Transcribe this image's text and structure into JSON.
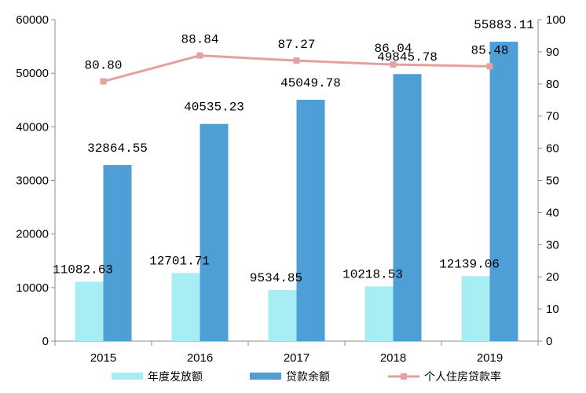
{
  "chart_data": {
    "type": "bar",
    "title": "",
    "xlabel": "",
    "ylabel": "",
    "categories": [
      "2015",
      "2016",
      "2017",
      "2018",
      "2019"
    ],
    "y_left": {
      "ylim": [
        0,
        60000
      ],
      "ticks": [
        "0",
        "10000",
        "20000",
        "30000",
        "40000",
        "50000",
        "60000"
      ]
    },
    "y_right": {
      "ylim": [
        0,
        100
      ],
      "ticks": [
        "0",
        "10",
        "20",
        "30",
        "40",
        "50",
        "60",
        "70",
        "80",
        "90",
        "100"
      ]
    },
    "grid": false,
    "legend_position": "bottom",
    "series": [
      {
        "name": "年度发放额",
        "type": "bar",
        "axis": "left",
        "color": "#a6eef3",
        "values": [
          11082.63,
          12701.71,
          9534.85,
          10218.53,
          12139.06
        ],
        "labels": [
          "11082.63",
          "12701.71",
          "9534.85",
          "10218.53",
          "12139.06"
        ]
      },
      {
        "name": "贷款余额",
        "type": "bar",
        "axis": "left",
        "color": "#4d9fd6",
        "values": [
          32864.55,
          40535.23,
          45049.78,
          49845.78,
          55883.11
        ],
        "labels": [
          "32864.55",
          "40535.23",
          "45049.78",
          "49845.78",
          "55883.11"
        ]
      },
      {
        "name": "个人住房贷款率",
        "type": "line",
        "axis": "right",
        "color": "#e4a19e",
        "values": [
          80.8,
          88.84,
          87.27,
          86.04,
          85.48
        ],
        "labels": [
          "80.80",
          "88.84",
          "87.27",
          "86.04",
          "85.48"
        ]
      }
    ]
  }
}
